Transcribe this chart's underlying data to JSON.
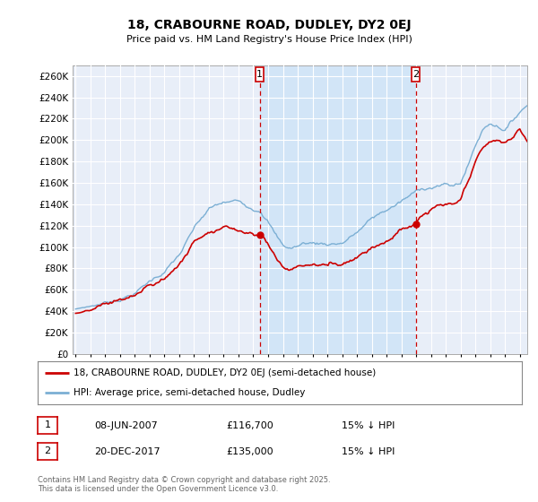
{
  "title": "18, CRABOURNE ROAD, DUDLEY, DY2 0EJ",
  "subtitle": "Price paid vs. HM Land Registry's House Price Index (HPI)",
  "ylabel_ticks": [
    "£0",
    "£20K",
    "£40K",
    "£60K",
    "£80K",
    "£100K",
    "£120K",
    "£140K",
    "£160K",
    "£180K",
    "£200K",
    "£220K",
    "£240K",
    "£260K"
  ],
  "ytick_values": [
    0,
    20000,
    40000,
    60000,
    80000,
    100000,
    120000,
    140000,
    160000,
    180000,
    200000,
    220000,
    240000,
    260000
  ],
  "ylim": [
    0,
    270000
  ],
  "xlim_start": 1994.8,
  "xlim_end": 2025.5,
  "marker1_x": 2007.44,
  "marker1_y": 116700,
  "marker2_x": 2017.97,
  "marker2_y": 135000,
  "marker1_label": "1",
  "marker2_label": "2",
  "marker1_date": "08-JUN-2007",
  "marker1_price": "£116,700",
  "marker1_note": "15% ↓ HPI",
  "marker2_date": "20-DEC-2017",
  "marker2_price": "£135,000",
  "marker2_note": "15% ↓ HPI",
  "hpi_color": "#7bafd4",
  "price_color": "#cc0000",
  "marker_color": "#cc0000",
  "shade_color": "#d0e4f7",
  "bg_color": "#e8eef8",
  "legend_line1": "18, CRABOURNE ROAD, DUDLEY, DY2 0EJ (semi-detached house)",
  "legend_line2": "HPI: Average price, semi-detached house, Dudley",
  "footer": "Contains HM Land Registry data © Crown copyright and database right 2025.\nThis data is licensed under the Open Government Licence v3.0."
}
